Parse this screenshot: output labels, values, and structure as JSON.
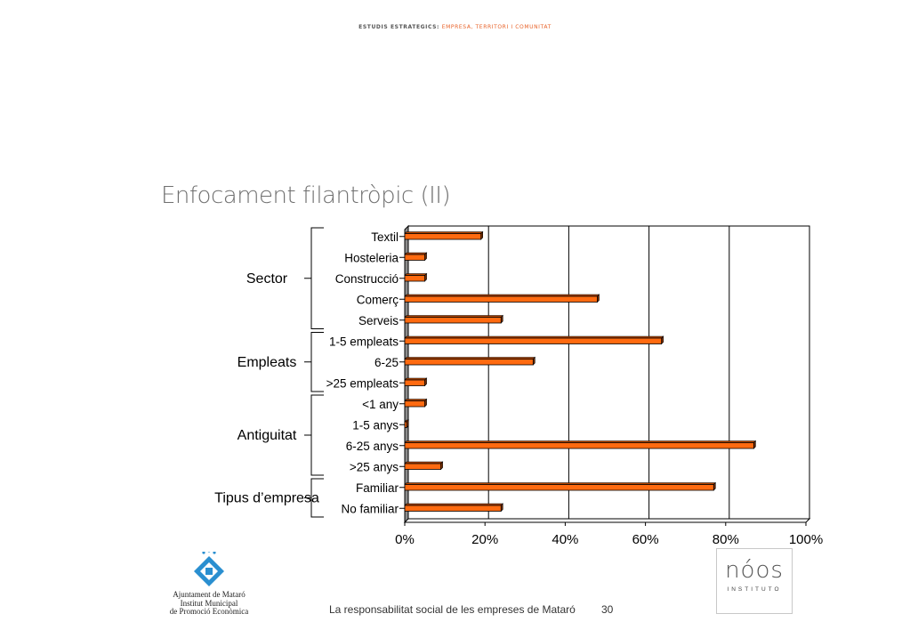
{
  "header": {
    "part1": "ESTUDIS ESTRATEGICS:",
    "part2": "EMPRESA, TERRITORI I COMUNITAT"
  },
  "slide_title": "Enfocament filantròpic (II)",
  "chart_data": {
    "type": "bar",
    "orientation": "horizontal",
    "categories": [
      "Textil",
      "Hosteleria",
      "Construcció",
      "Comerç",
      "Serveis",
      "1-5 empleats",
      "6-25",
      ">25 empleats",
      "<1 any",
      "1-5 anys",
      "6-25 anys",
      ">25 anys",
      "Familiar",
      "No familiar"
    ],
    "values": [
      19,
      5,
      5,
      48,
      24,
      64,
      32,
      5,
      5,
      0.5,
      87,
      9,
      77,
      24
    ],
    "groups": [
      {
        "label": "Sector",
        "count": 5
      },
      {
        "label": "Empleats",
        "count": 3
      },
      {
        "label": "Antiguitat",
        "count": 4
      },
      {
        "label": "Tipus d’empresa",
        "count": 2
      }
    ],
    "xlim": [
      0,
      100
    ],
    "xticks": [
      "0%",
      "20%",
      "40%",
      "60%",
      "80%",
      "100%"
    ],
    "grid": true,
    "bar_color": "#ff6a10",
    "title": "",
    "xlabel": "",
    "ylabel": ""
  },
  "footer": {
    "text": "La responsabilitat social de les empreses de Mataró",
    "page": "30"
  },
  "logo_left": {
    "line1": "Ajuntament de Mataró",
    "line2": "Institut Municipal",
    "line3": "de Promoció Econòmica"
  },
  "logo_right": {
    "name": "nóos",
    "sub": "INSTITUTO"
  }
}
